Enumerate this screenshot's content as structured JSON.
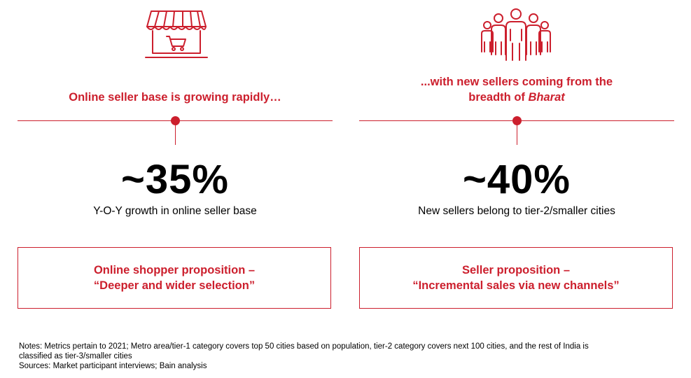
{
  "left": {
    "icon": "storefront-cart-icon",
    "headline": "Online seller base is growing rapidly…",
    "metric": "~35%",
    "caption": "Y-O-Y growth in online seller base",
    "proposition_line1": "Online shopper proposition –",
    "proposition_line2": "“Deeper and wider selection”"
  },
  "right": {
    "icon": "people-group-icon",
    "headline_line1": "...with new sellers coming from the",
    "headline_line2_prefix": "breadth of ",
    "headline_line2_emph": "Bharat",
    "metric": "~40%",
    "caption": "New sellers belong to tier-2/smaller cities",
    "proposition_line1": "Seller proposition –",
    "proposition_line2": "“Incremental sales via new channels”"
  },
  "notes": {
    "line1": "Notes: Metrics pertain to 2021; Metro area/tier-1 category covers top 50 cities based on population, tier-2 category covers next 100 cities, and the rest of India is",
    "line2": "classified as tier-3/smaller cities",
    "sources": "Sources: Market participant interviews; Bain analysis"
  },
  "colors": {
    "accent": "#cc1f2d",
    "text": "#000000",
    "background": "#ffffff"
  }
}
